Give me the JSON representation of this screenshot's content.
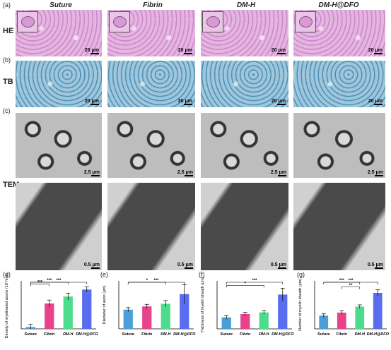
{
  "figure": {
    "panels": {
      "a": "(a)",
      "b": "(b)",
      "c": "(c)",
      "d": "(d)",
      "e": "(e)",
      "f": "(f)",
      "g": "(g)"
    },
    "columns": [
      "Suture",
      "Fibrin",
      "DM-H",
      "DM-H@DFO"
    ],
    "rows": {
      "he": "HE",
      "tb": "TB",
      "tem": "TEM"
    },
    "scalebars": {
      "he": "20 μm",
      "tb": "20 μm",
      "tem_low": "2.5 μm",
      "tem_high": "0.5 μm"
    }
  },
  "chart_data": [
    {
      "type": "bar",
      "categories": [
        "Suture",
        "Fibrin",
        "DM-H",
        "DM-H@DFO"
      ],
      "values": [
        2,
        29,
        37,
        45
      ],
      "errors": [
        3,
        4,
        4,
        3
      ],
      "ylabel": "Density of myelinated axons (10⁴/mm²)",
      "ylim": [
        0,
        55
      ],
      "colors": [
        "#4a9fd8",
        "#e8428a",
        "#4ddc8c",
        "#5a6df0"
      ],
      "significance": [
        [
          "Suture",
          "Fibrin",
          "***"
        ],
        [
          "Suture",
          "DM-H",
          "***"
        ],
        [
          "Suture",
          "DM-H@DFO",
          "***"
        ]
      ]
    },
    {
      "type": "bar",
      "categories": [
        "Suture",
        "Fibrin",
        "DM-H",
        "DM-H@DFO"
      ],
      "values": [
        3.6,
        4.2,
        4.7,
        6.5
      ],
      "errors": [
        0.4,
        0.4,
        0.6,
        1.8
      ],
      "ylabel": "Diameter of axon (μm)",
      "ylim": [
        0,
        9
      ],
      "colors": [
        "#4a9fd8",
        "#e8428a",
        "#4ddc8c",
        "#5a6df0"
      ],
      "significance": [
        [
          "Suture",
          "DM-H",
          "*"
        ],
        [
          "Suture",
          "DM-H@DFO",
          "***"
        ]
      ]
    },
    {
      "type": "bar",
      "categories": [
        "Suture",
        "Fibrin",
        "DM-H",
        "DM-H@DFO"
      ],
      "values": [
        0.5,
        0.65,
        0.72,
        1.5
      ],
      "errors": [
        0.08,
        0.08,
        0.08,
        0.28
      ],
      "ylabel": "Thickness of myelin sheath (μm)",
      "ylim": [
        0,
        2.1
      ],
      "colors": [
        "#4a9fd8",
        "#e8428a",
        "#4ddc8c",
        "#5a6df0"
      ],
      "significance": [
        [
          "Suture",
          "DM-H",
          "*"
        ],
        [
          "Suture",
          "DM-H@DFO",
          "***"
        ]
      ]
    },
    {
      "type": "bar",
      "categories": [
        "Suture",
        "Fibrin",
        "DM-H",
        "DM-H@DFO"
      ],
      "values": [
        22,
        27,
        37,
        60
      ],
      "errors": [
        3,
        3,
        3,
        5
      ],
      "ylabel": "Number of myelin sheath (μm)",
      "ylim": [
        0,
        80
      ],
      "colors": [
        "#4a9fd8",
        "#e8428a",
        "#4ddc8c",
        "#5a6df0"
      ],
      "significance": [
        [
          "Fibrin",
          "DM-H",
          "**"
        ],
        [
          "Suture",
          "DM-H",
          "***"
        ],
        [
          "Suture",
          "DM-H@DFO",
          "***"
        ]
      ]
    }
  ]
}
